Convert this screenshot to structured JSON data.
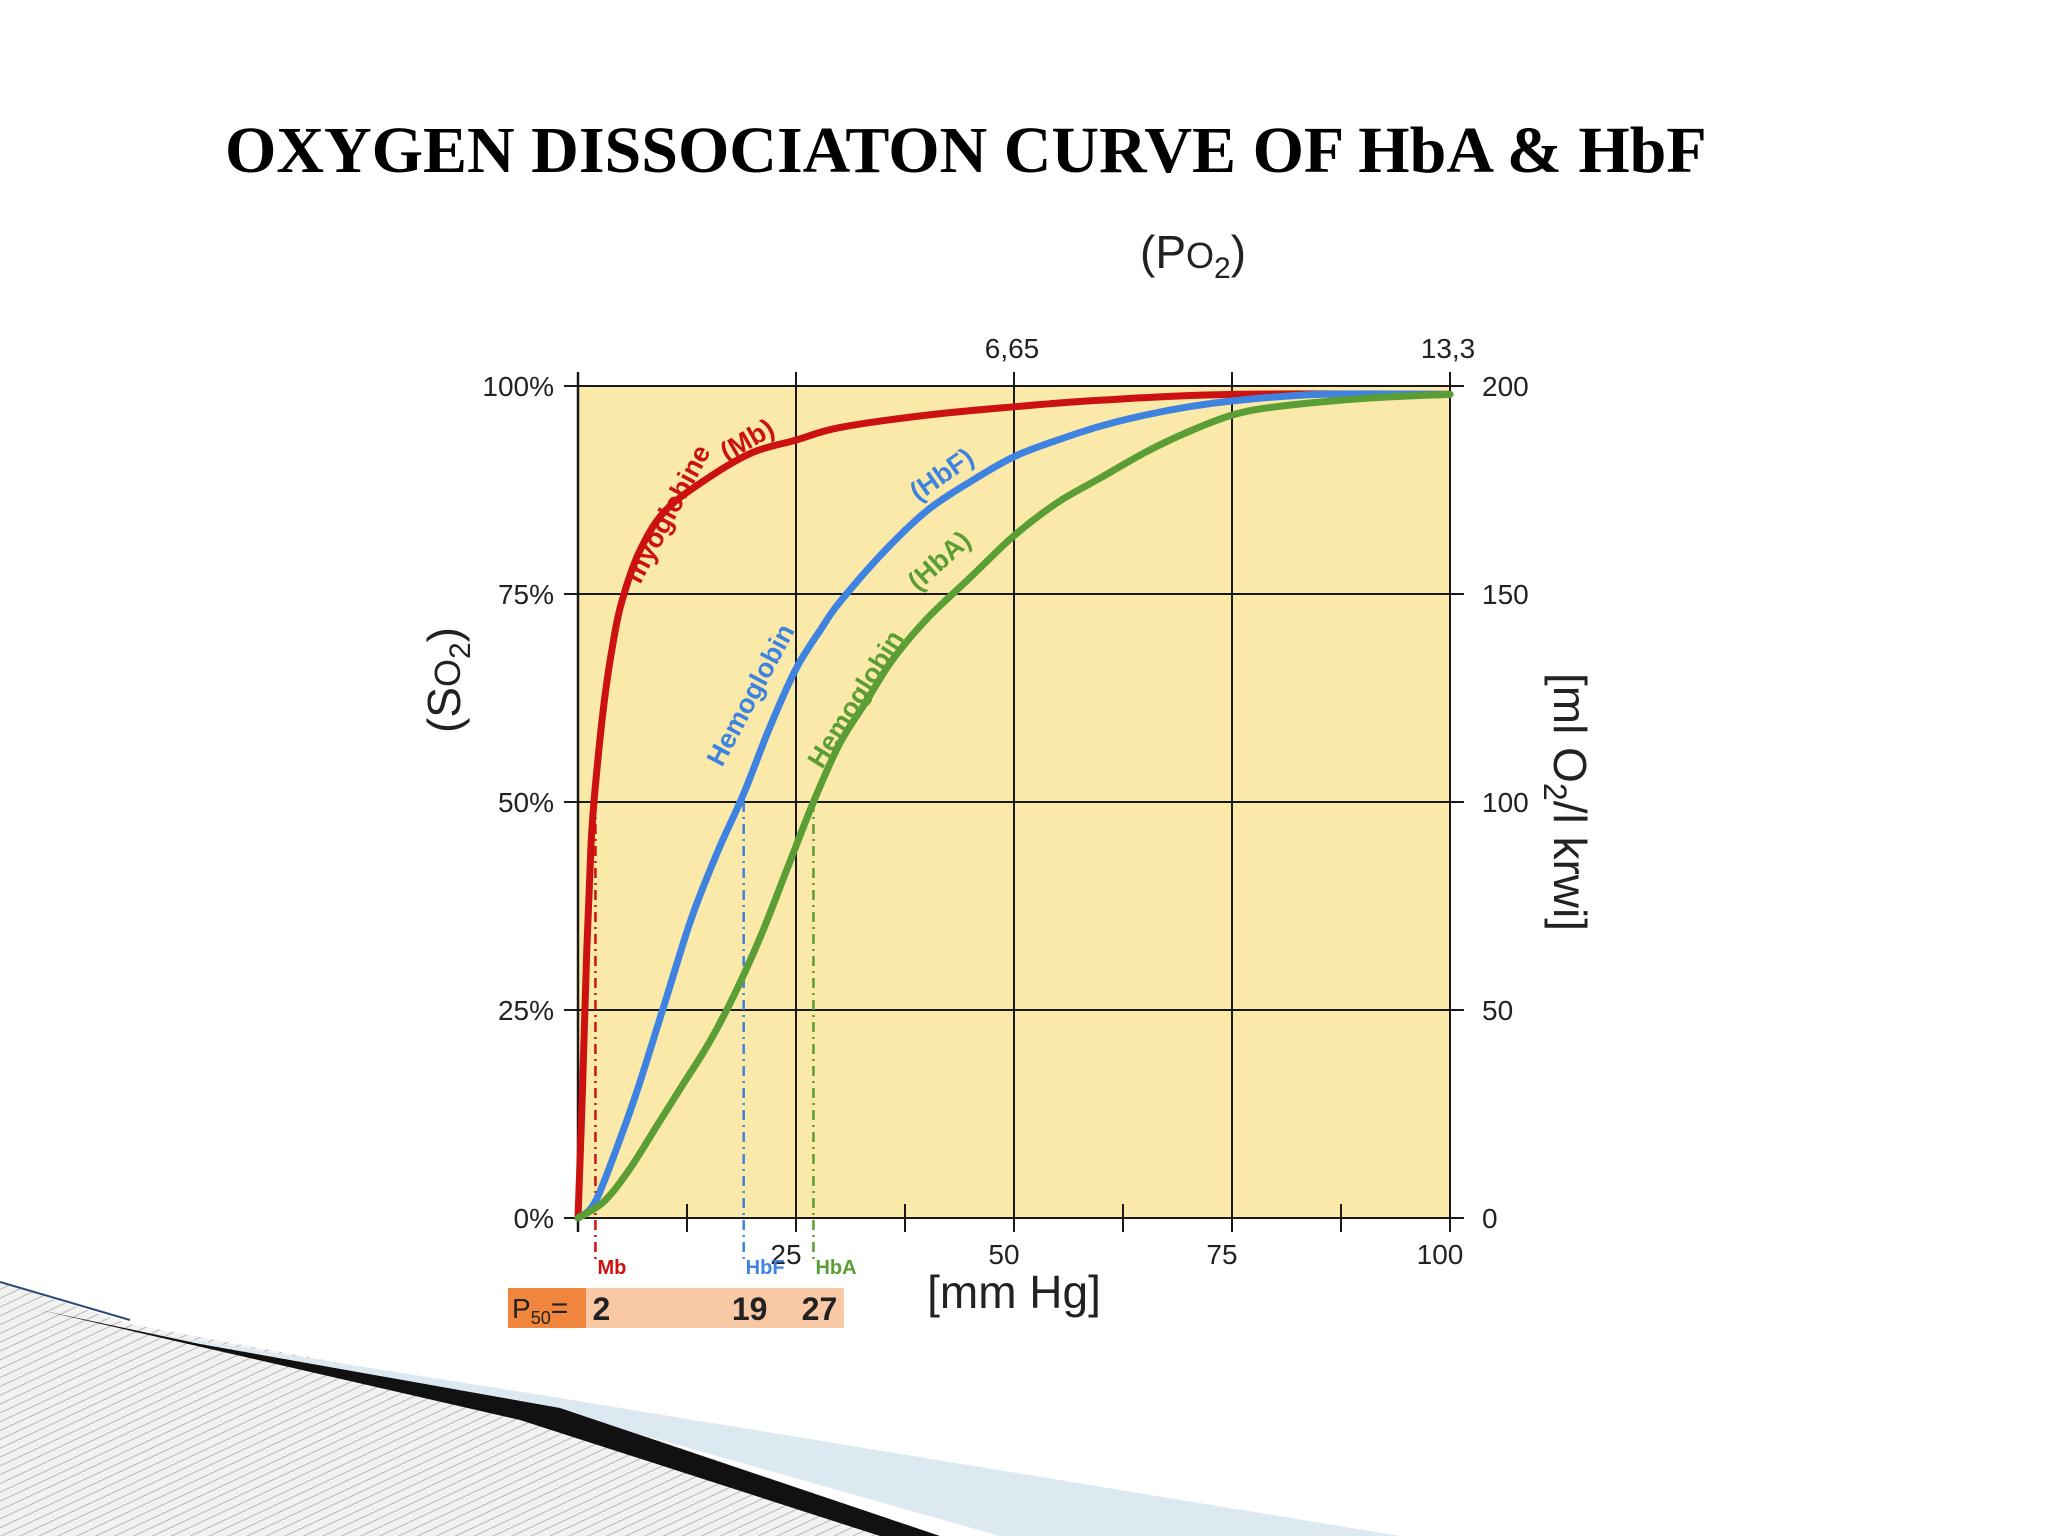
{
  "page": {
    "title": "OXYGEN DISSOCIATON CURVE OF HbA & HbF"
  },
  "chart_data": {
    "type": "line",
    "title": "OXYGEN DISSOCIATON CURVE OF HbA & HbF",
    "top_axis_label_base": "(P",
    "top_axis_label_sub": "O",
    "top_axis_label_subscript": "2",
    "top_axis_label_end": ")",
    "top_ticks": [
      {
        "x": 50,
        "label": "6,65"
      },
      {
        "x": 100,
        "label": "13,3"
      }
    ],
    "ylabel_base": "(S",
    "ylabel_sub": "O",
    "ylabel_subscript": "2",
    "ylabel_end": ")",
    "y2label_base": "[ml O",
    "y2label_subscript": "2",
    "y2label_end": "/l krwi]",
    "xlabel": "[mm Hg]",
    "xlim": [
      0,
      100
    ],
    "ylim": [
      0,
      100
    ],
    "x_ticks": [
      {
        "value": 25,
        "label": "25"
      },
      {
        "value": 50,
        "label": "50"
      },
      {
        "value": 75,
        "label": "75"
      },
      {
        "value": 100,
        "label": "100"
      }
    ],
    "x_minor_ticks": [
      12.5,
      37.5,
      62.5,
      87.5
    ],
    "y_ticks": [
      {
        "value": 0,
        "label": "0%"
      },
      {
        "value": 25,
        "label": "25%"
      },
      {
        "value": 50,
        "label": "50%"
      },
      {
        "value": 75,
        "label": "75%"
      },
      {
        "value": 100,
        "label": "100%"
      }
    ],
    "y2_ticks": [
      {
        "value": 0,
        "label": "0"
      },
      {
        "value": 25,
        "label": "50"
      },
      {
        "value": 50,
        "label": "100"
      },
      {
        "value": 75,
        "label": "150"
      },
      {
        "value": 100,
        "label": "200"
      }
    ],
    "grid": true,
    "plot_background": "#fbe9a9",
    "series": [
      {
        "name": "myoglobine (Mb)",
        "label_parts": [
          "myoglobine",
          "(Mb)"
        ],
        "color": "#cc1111",
        "p50": 2,
        "p50_tag": "Mb",
        "points": [
          [
            0,
            0
          ],
          [
            0.5,
            15
          ],
          [
            1,
            32
          ],
          [
            1.5,
            45
          ],
          [
            2,
            52
          ],
          [
            3,
            62
          ],
          [
            4,
            69
          ],
          [
            5,
            74
          ],
          [
            7,
            80
          ],
          [
            10,
            85
          ],
          [
            15,
            89
          ],
          [
            20,
            92
          ],
          [
            25,
            93.5
          ],
          [
            30,
            95
          ],
          [
            40,
            96.5
          ],
          [
            50,
            97.5
          ],
          [
            60,
            98.3
          ],
          [
            75,
            99
          ],
          [
            100,
            99
          ]
        ]
      },
      {
        "name": "Hemoglobin (HbF)",
        "label_parts": [
          "Hemoglobin",
          "(HbF)"
        ],
        "color": "#3f83e0",
        "p50": 19,
        "p50_tag": "HbF",
        "points": [
          [
            0,
            0
          ],
          [
            2,
            2
          ],
          [
            5,
            10
          ],
          [
            7,
            16
          ],
          [
            10,
            26
          ],
          [
            13,
            36
          ],
          [
            16,
            44
          ],
          [
            19,
            51
          ],
          [
            22,
            59
          ],
          [
            25,
            66
          ],
          [
            28,
            71
          ],
          [
            30,
            74
          ],
          [
            35,
            80
          ],
          [
            40,
            85
          ],
          [
            45,
            88.5
          ],
          [
            50,
            91.5
          ],
          [
            55,
            93.5
          ],
          [
            60,
            95.2
          ],
          [
            65,
            96.5
          ],
          [
            70,
            97.5
          ],
          [
            75,
            98.2
          ],
          [
            85,
            99
          ],
          [
            100,
            99
          ]
        ]
      },
      {
        "name": "Hemoglobin (HbA)",
        "label_parts": [
          "Hemoglobin",
          "(HbA)"
        ],
        "color": "#5a9e35",
        "p50": 27,
        "p50_tag": "HbA",
        "points": [
          [
            0,
            0
          ],
          [
            3,
            2
          ],
          [
            6,
            6
          ],
          [
            9,
            11
          ],
          [
            12,
            16
          ],
          [
            15,
            21
          ],
          [
            18,
            27
          ],
          [
            21,
            34
          ],
          [
            24,
            42
          ],
          [
            27,
            50
          ],
          [
            30,
            57
          ],
          [
            33,
            62
          ],
          [
            36,
            67
          ],
          [
            40,
            72
          ],
          [
            45,
            77
          ],
          [
            50,
            82
          ],
          [
            55,
            86
          ],
          [
            60,
            89
          ],
          [
            65,
            92
          ],
          [
            70,
            94.5
          ],
          [
            75,
            96.5
          ],
          [
            80,
            97.5
          ],
          [
            90,
            98.5
          ],
          [
            100,
            99
          ]
        ]
      }
    ],
    "p50_box": {
      "label": "P",
      "subscript": "50",
      "equals": "=",
      "values": [
        "2",
        "19",
        "27"
      ],
      "label_bg": "#f0853d",
      "values_bg": "#f8c9a4"
    }
  }
}
